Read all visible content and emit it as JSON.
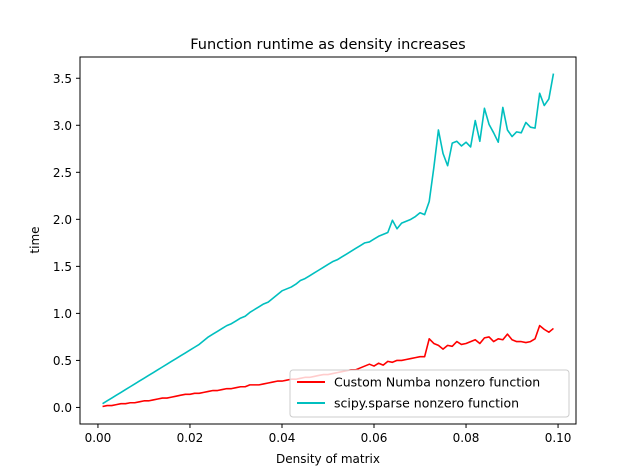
{
  "chart_data": {
    "type": "line",
    "title": "Function runtime as density increases",
    "xlabel": "Density of matrix",
    "ylabel": "time",
    "xlim": [
      -0.0039,
      0.1039
    ],
    "ylim": [
      -0.176,
      3.726
    ],
    "xticks": [
      "0.00",
      "0.02",
      "0.04",
      "0.06",
      "0.08",
      "0.10"
    ],
    "yticks": [
      "0.0",
      "0.5",
      "1.0",
      "1.5",
      "2.0",
      "2.5",
      "3.0",
      "3.5"
    ],
    "grid": false,
    "legend_position": "lower right",
    "x": [
      0.001,
      0.002,
      0.003,
      0.004,
      0.005,
      0.006,
      0.007,
      0.008,
      0.009,
      0.01,
      0.011,
      0.012,
      0.013,
      0.014,
      0.015,
      0.016,
      0.017,
      0.018,
      0.019,
      0.02,
      0.021,
      0.022,
      0.023,
      0.024,
      0.025,
      0.026,
      0.027,
      0.028,
      0.029,
      0.03,
      0.031,
      0.032,
      0.033,
      0.034,
      0.035,
      0.036,
      0.037,
      0.038,
      0.039,
      0.04,
      0.041,
      0.042,
      0.043,
      0.044,
      0.045,
      0.046,
      0.047,
      0.048,
      0.049,
      0.05,
      0.051,
      0.052,
      0.053,
      0.054,
      0.055,
      0.056,
      0.057,
      0.058,
      0.059,
      0.06,
      0.061,
      0.062,
      0.063,
      0.064,
      0.065,
      0.066,
      0.067,
      0.068,
      0.069,
      0.07,
      0.071,
      0.072,
      0.073,
      0.074,
      0.075,
      0.076,
      0.077,
      0.078,
      0.079,
      0.08,
      0.081,
      0.082,
      0.083,
      0.084,
      0.085,
      0.086,
      0.087,
      0.088,
      0.089,
      0.09,
      0.091,
      0.092,
      0.093,
      0.094,
      0.095,
      0.096,
      0.097,
      0.098,
      0.099
    ],
    "series": [
      {
        "name": "Custom Numba nonzero function",
        "color": "#ff0000",
        "values": [
          0.01,
          0.02,
          0.02,
          0.03,
          0.04,
          0.04,
          0.05,
          0.05,
          0.06,
          0.07,
          0.07,
          0.08,
          0.09,
          0.1,
          0.1,
          0.11,
          0.12,
          0.13,
          0.14,
          0.14,
          0.15,
          0.15,
          0.16,
          0.17,
          0.18,
          0.18,
          0.19,
          0.2,
          0.2,
          0.21,
          0.22,
          0.22,
          0.24,
          0.24,
          0.24,
          0.25,
          0.26,
          0.27,
          0.28,
          0.28,
          0.29,
          0.3,
          0.3,
          0.31,
          0.32,
          0.32,
          0.33,
          0.34,
          0.35,
          0.35,
          0.36,
          0.37,
          0.38,
          0.39,
          0.4,
          0.4,
          0.42,
          0.44,
          0.46,
          0.44,
          0.47,
          0.45,
          0.49,
          0.48,
          0.5,
          0.5,
          0.51,
          0.52,
          0.53,
          0.54,
          0.54,
          0.73,
          0.68,
          0.66,
          0.62,
          0.66,
          0.65,
          0.7,
          0.67,
          0.68,
          0.7,
          0.72,
          0.68,
          0.74,
          0.75,
          0.7,
          0.73,
          0.72,
          0.78,
          0.72,
          0.7,
          0.7,
          0.69,
          0.7,
          0.73,
          0.87,
          0.83,
          0.8,
          0.84
        ]
      },
      {
        "name": "scipy.sparse nonzero function",
        "color": "#00bfbf",
        "values": [
          0.04,
          0.07,
          0.1,
          0.13,
          0.16,
          0.19,
          0.22,
          0.25,
          0.28,
          0.31,
          0.34,
          0.37,
          0.4,
          0.43,
          0.46,
          0.49,
          0.52,
          0.55,
          0.58,
          0.61,
          0.64,
          0.67,
          0.71,
          0.75,
          0.78,
          0.81,
          0.84,
          0.87,
          0.89,
          0.92,
          0.95,
          0.97,
          1.01,
          1.04,
          1.07,
          1.1,
          1.12,
          1.16,
          1.2,
          1.24,
          1.26,
          1.28,
          1.31,
          1.35,
          1.37,
          1.4,
          1.43,
          1.46,
          1.49,
          1.52,
          1.55,
          1.57,
          1.6,
          1.63,
          1.66,
          1.69,
          1.72,
          1.75,
          1.76,
          1.79,
          1.82,
          1.84,
          1.86,
          1.99,
          1.9,
          1.96,
          1.98,
          2.0,
          2.03,
          2.07,
          2.05,
          2.19,
          2.55,
          2.95,
          2.7,
          2.57,
          2.81,
          2.83,
          2.78,
          2.82,
          2.77,
          3.05,
          2.83,
          3.18,
          3.01,
          2.92,
          2.82,
          3.19,
          2.95,
          2.88,
          2.93,
          2.92,
          3.03,
          2.98,
          2.97,
          3.34,
          3.21,
          3.28,
          3.55
        ]
      }
    ]
  }
}
